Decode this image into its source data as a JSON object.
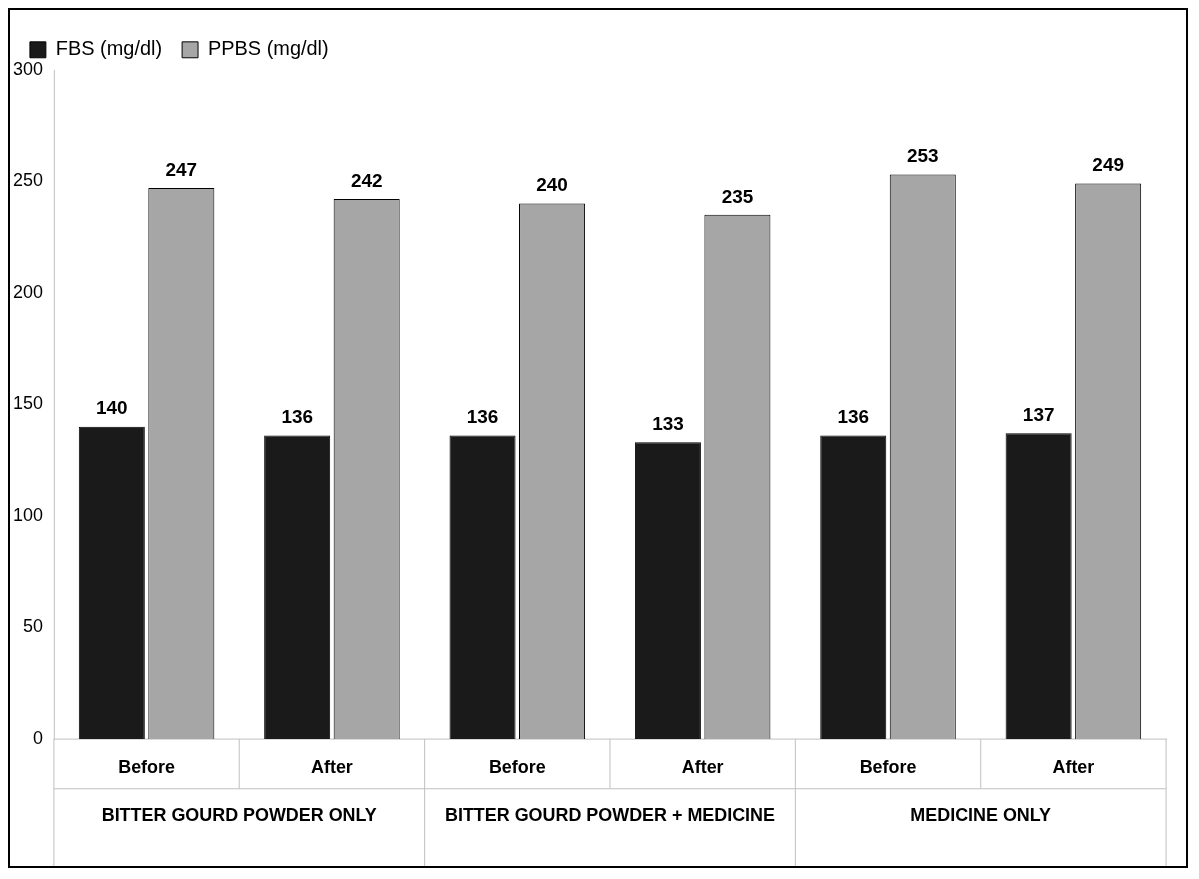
{
  "chart_data": {
    "type": "bar",
    "categories": [
      "Before",
      "After",
      "Before",
      "After",
      "Before",
      "After"
    ],
    "series": [
      {
        "name": "FBS (mg/dl)",
        "color": "#1a1a1a",
        "values": [
          140,
          136,
          136,
          133,
          136,
          137
        ]
      },
      {
        "name": "PPBS (mg/dl)",
        "color": "#a6a6a6",
        "values": [
          247,
          242,
          240,
          235,
          253,
          249
        ]
      }
    ],
    "ylim": [
      0,
      300
    ],
    "yticks": [
      0,
      50,
      100,
      150,
      200,
      250,
      300
    ],
    "grid": false,
    "legend": "top left",
    "data_labels": true,
    "annotations": [
      "BITTER GOURD POWDER ONLY",
      "BITTER GOURD POWDER + MEDICINE",
      "MEDICINE ONLY"
    ]
  }
}
